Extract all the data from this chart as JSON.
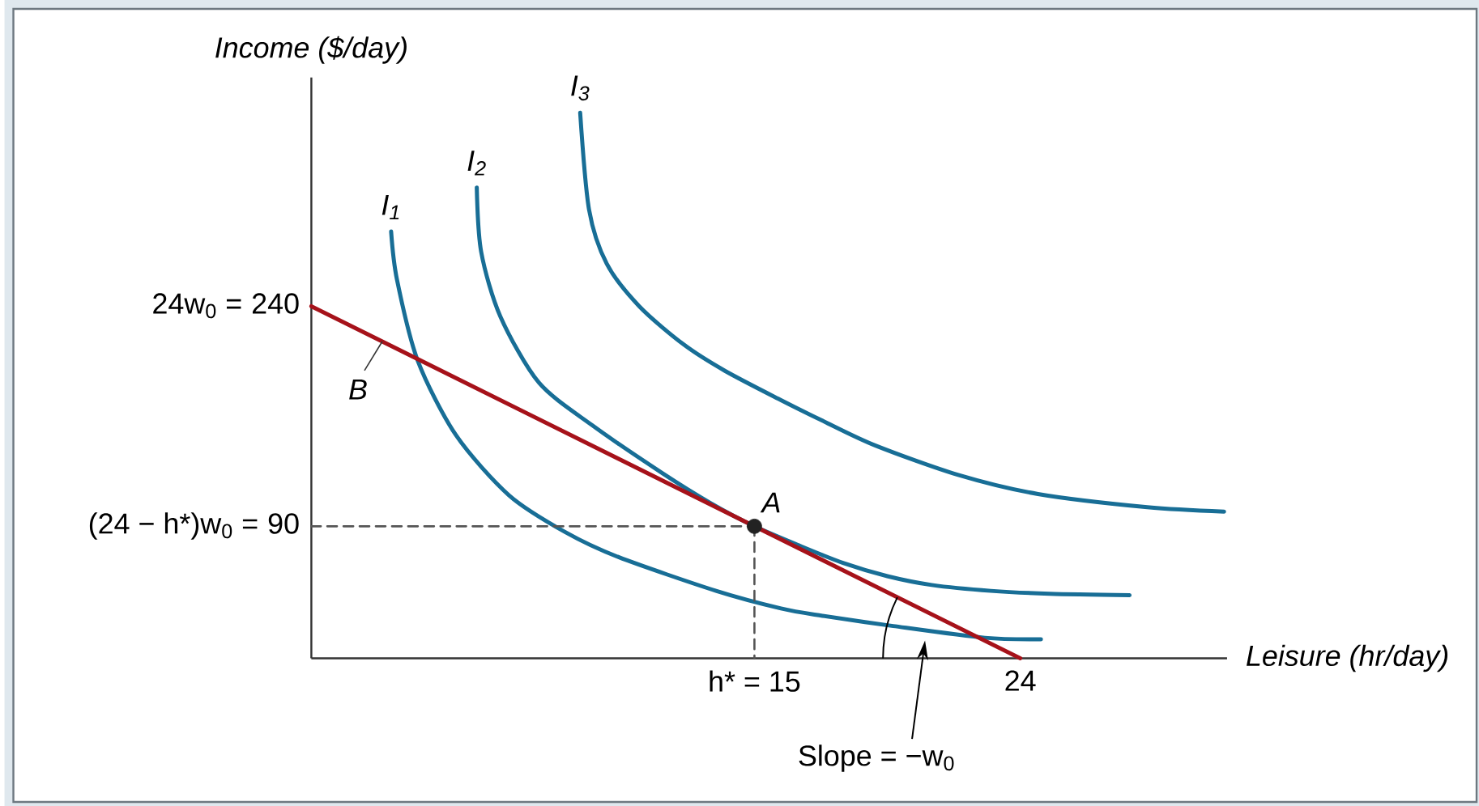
{
  "chart_data": {
    "type": "line",
    "xlabel": "Leisure (hr/day)",
    "ylabel": "Income ($/day)",
    "xlim": [
      0,
      31
    ],
    "ylim": [
      0,
      396
    ],
    "xticks": [
      {
        "value": 15,
        "label": "h* = 15"
      },
      24
    ],
    "yticks": [
      90,
      240
    ],
    "grid": false,
    "legend": false,
    "series": [
      {
        "name": "I$_{1}$",
        "color": "#186e96",
        "x": [
          2.7,
          2.9,
          3.6,
          4.9,
          6.7,
          8.6,
          10.4,
          13.7,
          15.9,
          17.3,
          19.7,
          22.8,
          24.7
        ],
        "values": [
          291,
          258,
          203,
          152,
          111,
          86,
          69,
          46,
          34,
          29,
          22,
          14,
          13
        ]
      },
      {
        "name": "I$_{2}$",
        "color": "#186e96",
        "x": [
          5.6,
          5.75,
          6.4,
          7.7,
          9.5,
          11.9,
          13.5,
          15,
          16.5,
          18,
          19.5,
          21,
          23,
          25,
          27.7
        ],
        "values": [
          321,
          277,
          233,
          188,
          159,
          126,
          106,
          90,
          77,
          65,
          56,
          50,
          46,
          44,
          43
        ]
      },
      {
        "name": "I$_{3}$",
        "color": "#186e96",
        "x": [
          9.1,
          9.4,
          10,
          11.1,
          12.6,
          14,
          15.9,
          17.3,
          19.1,
          21.9,
          24.6,
          28.3,
          30.9
        ],
        "values": [
          372,
          306,
          269,
          240,
          214,
          196,
          176,
          162,
          145,
          125,
          112,
          103,
          100
        ]
      },
      {
        "name": "B",
        "color": "#a6121a",
        "x": [
          0,
          24
        ],
        "values": [
          240,
          0
        ]
      },
      {
        "color": "#555555",
        "line_style": "dashed",
        "x": [
          0,
          15
        ],
        "values": [
          90,
          90
        ]
      },
      {
        "color": "#555555",
        "line_style": "dashed",
        "x": [
          15,
          15
        ],
        "values": [
          90,
          0
        ]
      },
      {
        "name": "A",
        "type": "scatter",
        "marker": "circle",
        "color": "#222222",
        "x": [
          15
        ],
        "values": [
          90
        ]
      }
    ],
    "annotations": [
      {
        "text": "24w$_{0}$ =",
        "x": 0,
        "y": 240
      },
      {
        "text": "(24 − h*)w$_{0}$ =",
        "x": 0,
        "y": 90
      },
      "Slope = −w$_{0}$"
    ]
  }
}
